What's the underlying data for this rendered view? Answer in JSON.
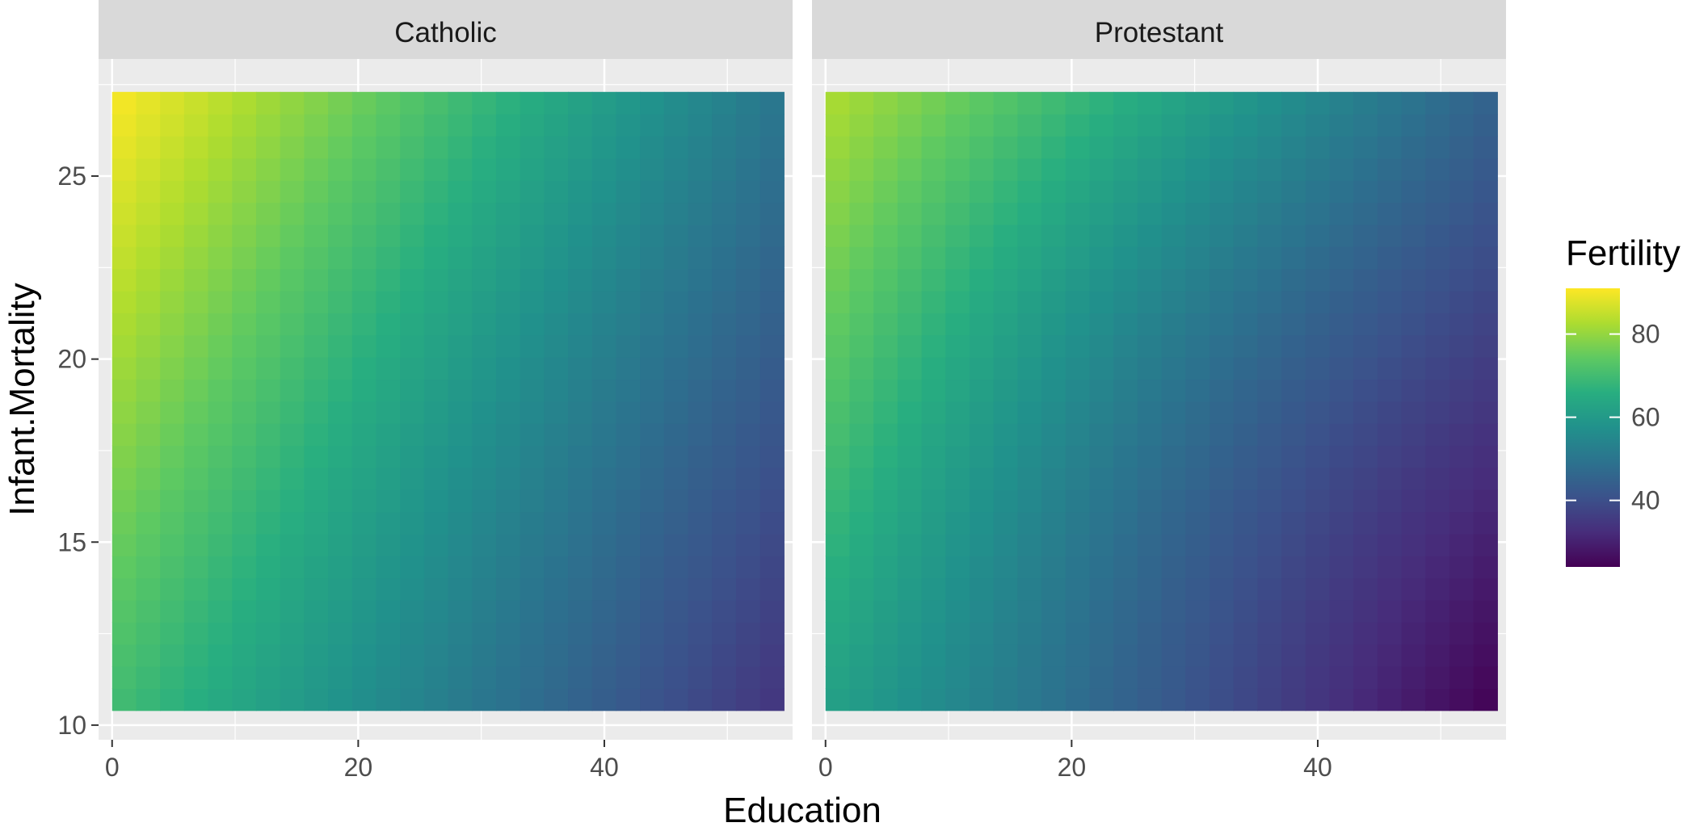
{
  "chart_data": {
    "type": "heatmap",
    "title": "",
    "xlabel": "Education",
    "ylabel": "Infant.Mortality",
    "facets": [
      "Catholic",
      "Protestant"
    ],
    "xlim": [
      -1.1,
      55.3
    ],
    "ylim": [
      9.6,
      28.2
    ],
    "x_ticks": [
      0,
      20,
      40
    ],
    "y_ticks": [
      10,
      15,
      20,
      25
    ],
    "grid_x": [
      0,
      27.3,
      54.6
    ],
    "grid_y": [
      10.4,
      18.85,
      27.3
    ],
    "grid_n": 28,
    "legend": {
      "title": "Fertility",
      "position": "right",
      "range": [
        24,
        91
      ],
      "ticks": [
        40,
        60,
        80
      ],
      "colorscale": "viridis"
    },
    "values": {
      "Catholic": {
        "corners": {
          "bottom_left": 70,
          "bottom_right": 34,
          "top_left": 91,
          "top_right": 50
        },
        "center": 60
      },
      "Protestant": {
        "corners": {
          "bottom_left": 62,
          "bottom_right": 24,
          "top_left": 83,
          "top_right": 45
        },
        "center": 50
      }
    }
  }
}
